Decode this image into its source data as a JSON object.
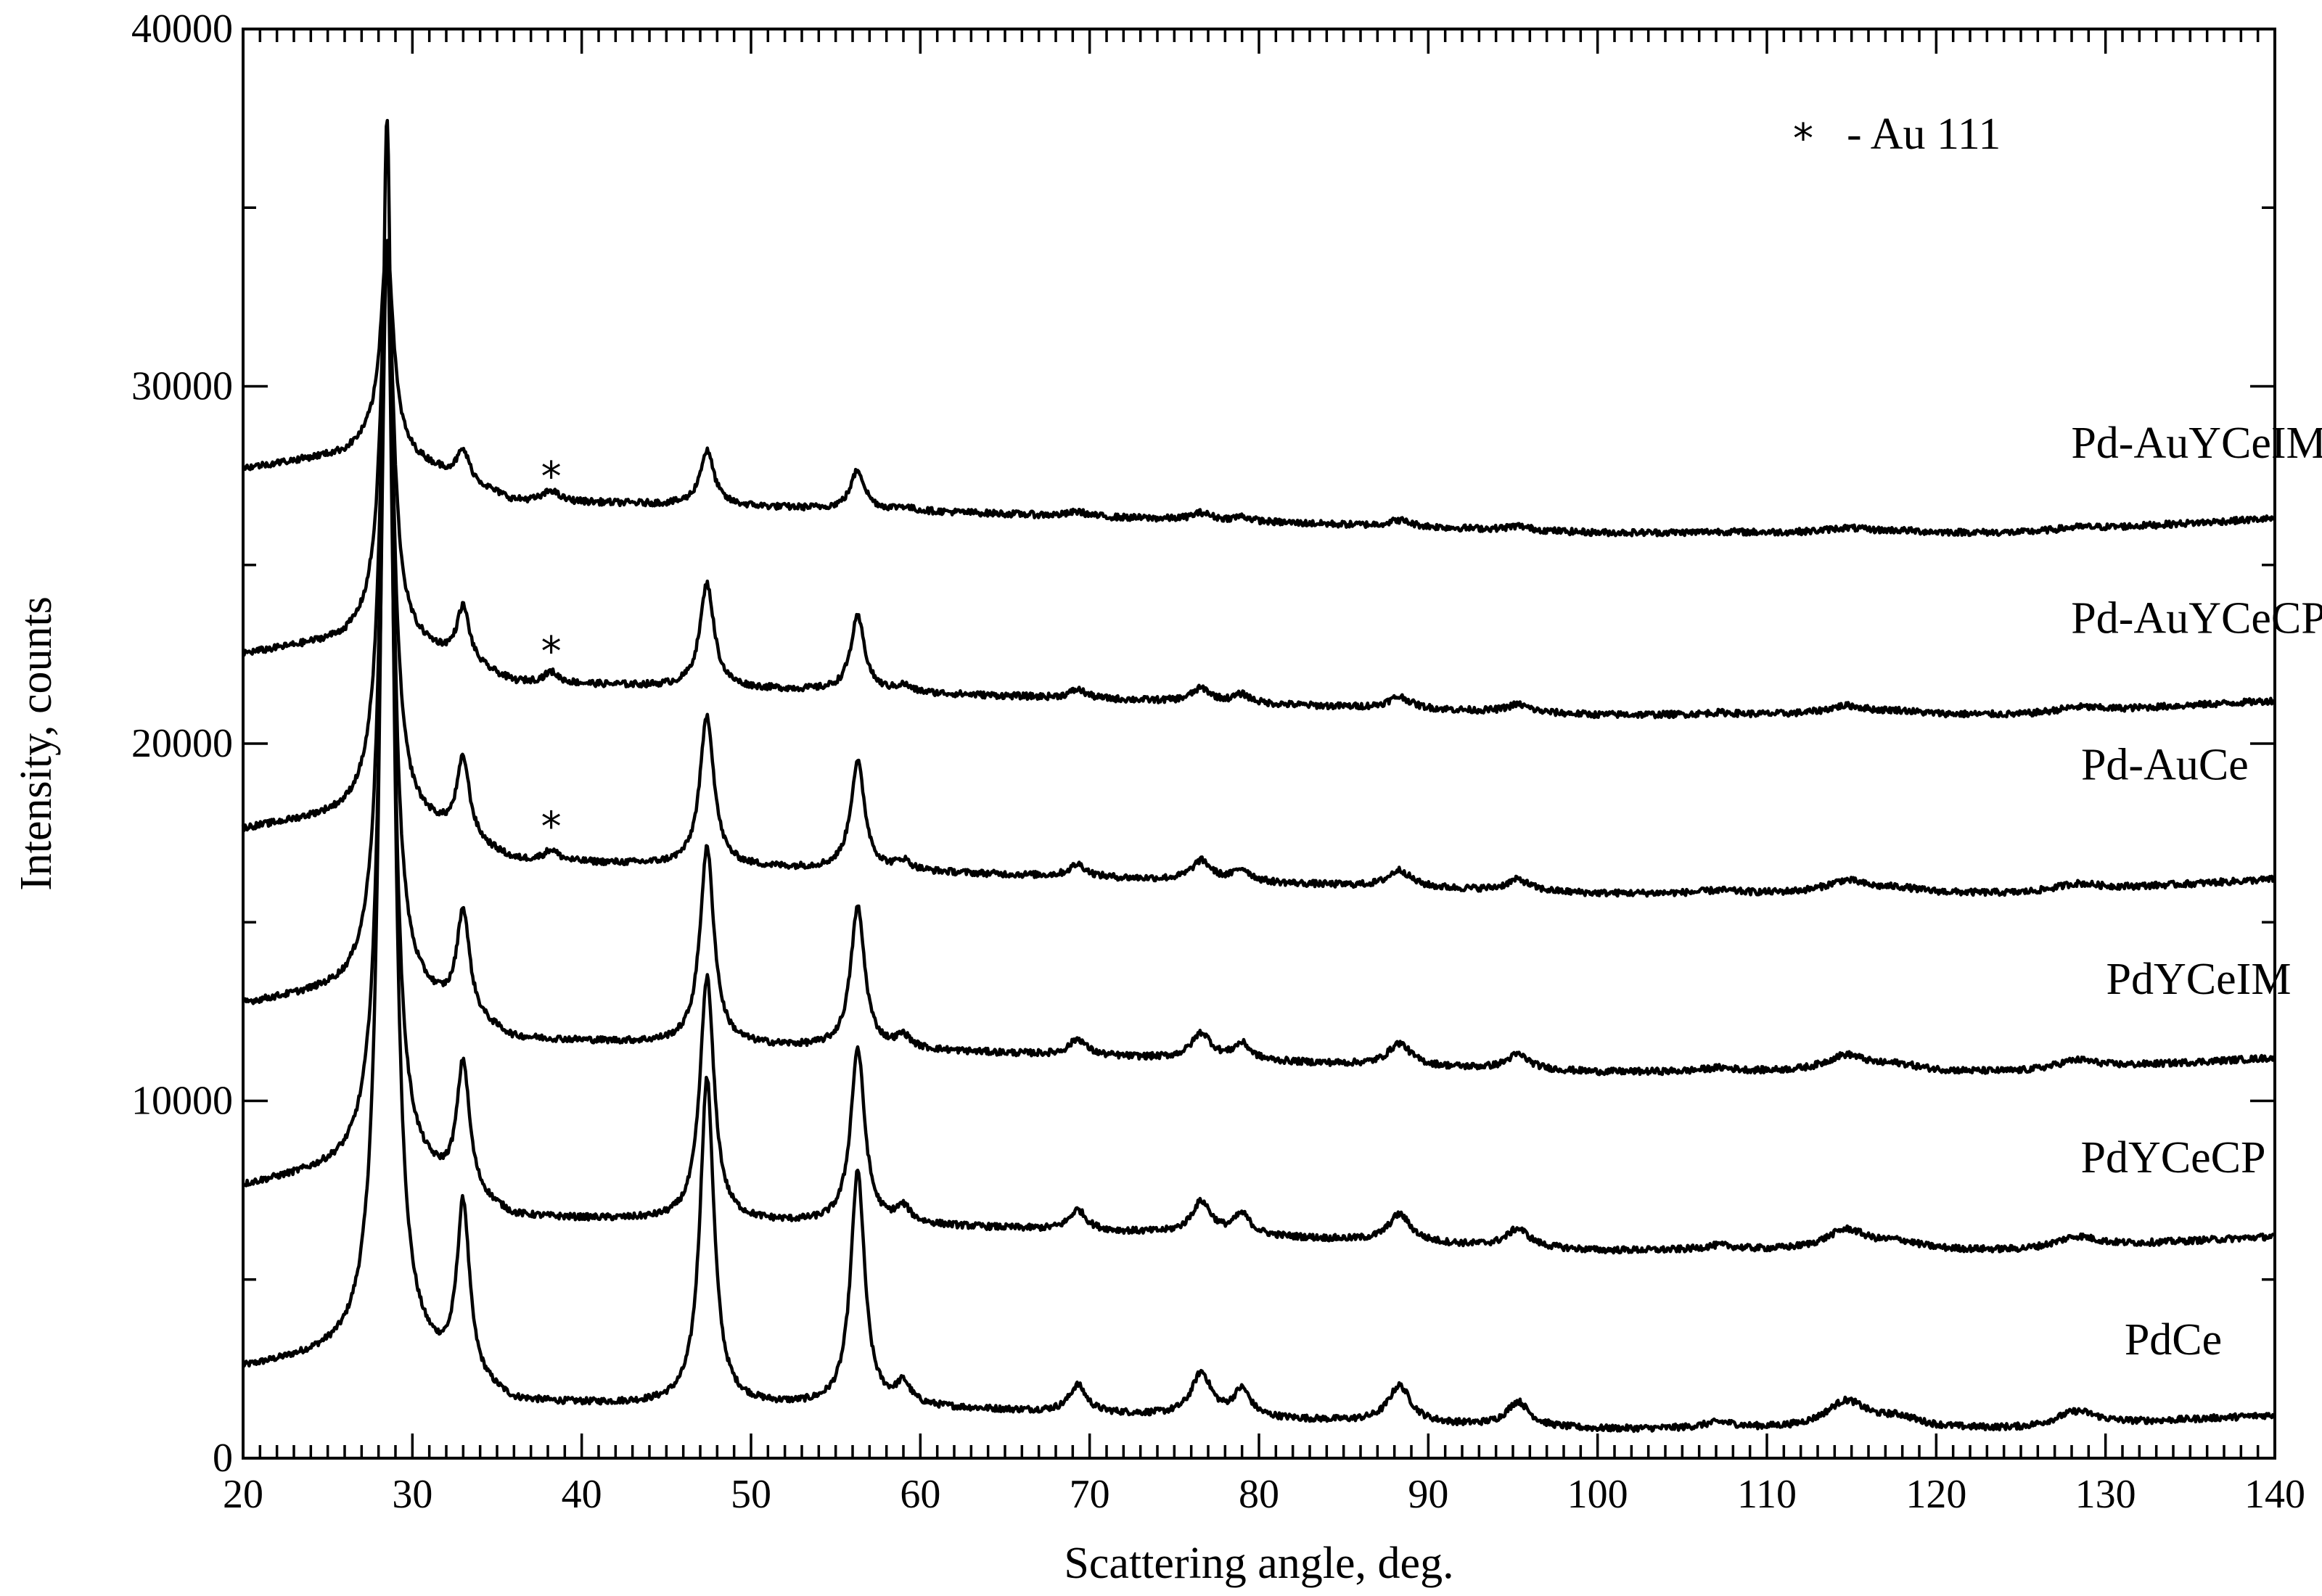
{
  "chart_data": {
    "type": "line",
    "title": "",
    "xlabel": "Scattering angle, deg.",
    "ylabel": "Intensity, counts",
    "xlim": [
      20,
      140
    ],
    "ylim": [
      0,
      40000
    ],
    "x_ticks": [
      20,
      30,
      40,
      50,
      60,
      70,
      80,
      90,
      100,
      110,
      120,
      130,
      140
    ],
    "y_ticks": [
      0,
      10000,
      20000,
      30000,
      40000
    ],
    "x_minor_step": 1,
    "y_minor_step": 5000,
    "legend": {
      "symbol": "*",
      "text": "- Au 111",
      "placement": "top-right"
    },
    "peaks": [
      {
        "x": 28.5,
        "height": 1.0,
        "width": 0.45
      },
      {
        "x": 33.0,
        "height": 0.14,
        "width": 0.45
      },
      {
        "x": 47.4,
        "height": 0.265,
        "width": 0.5
      },
      {
        "x": 56.3,
        "height": 0.19,
        "width": 0.5
      },
      {
        "x": 59.0,
        "height": 0.017,
        "width": 0.5
      },
      {
        "x": 69.3,
        "height": 0.022,
        "width": 0.6
      },
      {
        "x": 76.6,
        "height": 0.035,
        "width": 0.7
      },
      {
        "x": 79.0,
        "height": 0.022,
        "width": 0.6
      },
      {
        "x": 88.3,
        "height": 0.03,
        "width": 0.8
      },
      {
        "x": 95.3,
        "height": 0.02,
        "width": 0.8
      },
      {
        "x": 107.2,
        "height": 0.005,
        "width": 1.2
      },
      {
        "x": 114.7,
        "height": 0.022,
        "width": 1.5
      },
      {
        "x": 117.8,
        "height": 0.008,
        "width": 1.5
      },
      {
        "x": 128.3,
        "height": 0.012,
        "width": 1.5
      }
    ],
    "series": [
      {
        "name": "PdCe",
        "peak_max": 37500,
        "baseline": {
          "x": [
            20,
            26,
            27.5,
            36,
            60,
            80,
            100,
            125,
            140
          ],
          "y": [
            2500,
            2900,
            3200,
            1500,
            1400,
            1100,
            800,
            800,
            1200
          ]
        },
        "label_at": [
          134,
          2900
        ]
      },
      {
        "name": "PdYCeCP",
        "peak_max": 34000,
        "baseline": {
          "x": [
            20,
            26,
            27.5,
            36,
            60,
            80,
            100,
            125,
            140
          ],
          "y": [
            7600,
            8100,
            8400,
            6700,
            6500,
            6200,
            5800,
            5800,
            6200
          ]
        },
        "label_at": [
          134,
          8000
        ]
      },
      {
        "name": "PdYCeIM",
        "peak_max": 34000,
        "baseline": {
          "x": [
            20,
            26,
            27.5,
            36,
            60,
            80,
            100,
            125,
            140
          ],
          "y": [
            12700,
            13100,
            13400,
            11700,
            11400,
            11100,
            10800,
            10800,
            11200
          ]
        },
        "label_at": [
          135.5,
          13000
        ]
      },
      {
        "name": "Pd-AuCe",
        "peak_max": 34000,
        "star_at": [
          38.2,
          17900
        ],
        "baseline": {
          "x": [
            20,
            26,
            27.5,
            36,
            60,
            80,
            100,
            125,
            140
          ],
          "y": [
            17600,
            18000,
            18300,
            16700,
            16400,
            16100,
            15800,
            15800,
            16200
          ]
        },
        "label_at": [
          133.5,
          19000
        ]
      },
      {
        "name": "Pd-AuYCeCP",
        "peak_max": 34000,
        "star_at": [
          38.2,
          22800
        ],
        "baseline": {
          "x": [
            20,
            26,
            27.5,
            36,
            60,
            80,
            100,
            125,
            140
          ],
          "y": [
            22500,
            22900,
            23200,
            21700,
            21400,
            21100,
            20800,
            20800,
            21200
          ]
        },
        "label_at": [
          135.5,
          23100
        ]
      },
      {
        "name": "Pd-AuYCeIM",
        "peak_max": 34000,
        "star_at": [
          38.2,
          27700
        ],
        "baseline": {
          "x": [
            20,
            26,
            27.5,
            36,
            60,
            80,
            100,
            125,
            140
          ],
          "y": [
            27700,
            28100,
            28400,
            26800,
            26500,
            26200,
            25900,
            25900,
            26300
          ]
        },
        "label_at": [
          135.5,
          28000
        ]
      }
    ]
  }
}
